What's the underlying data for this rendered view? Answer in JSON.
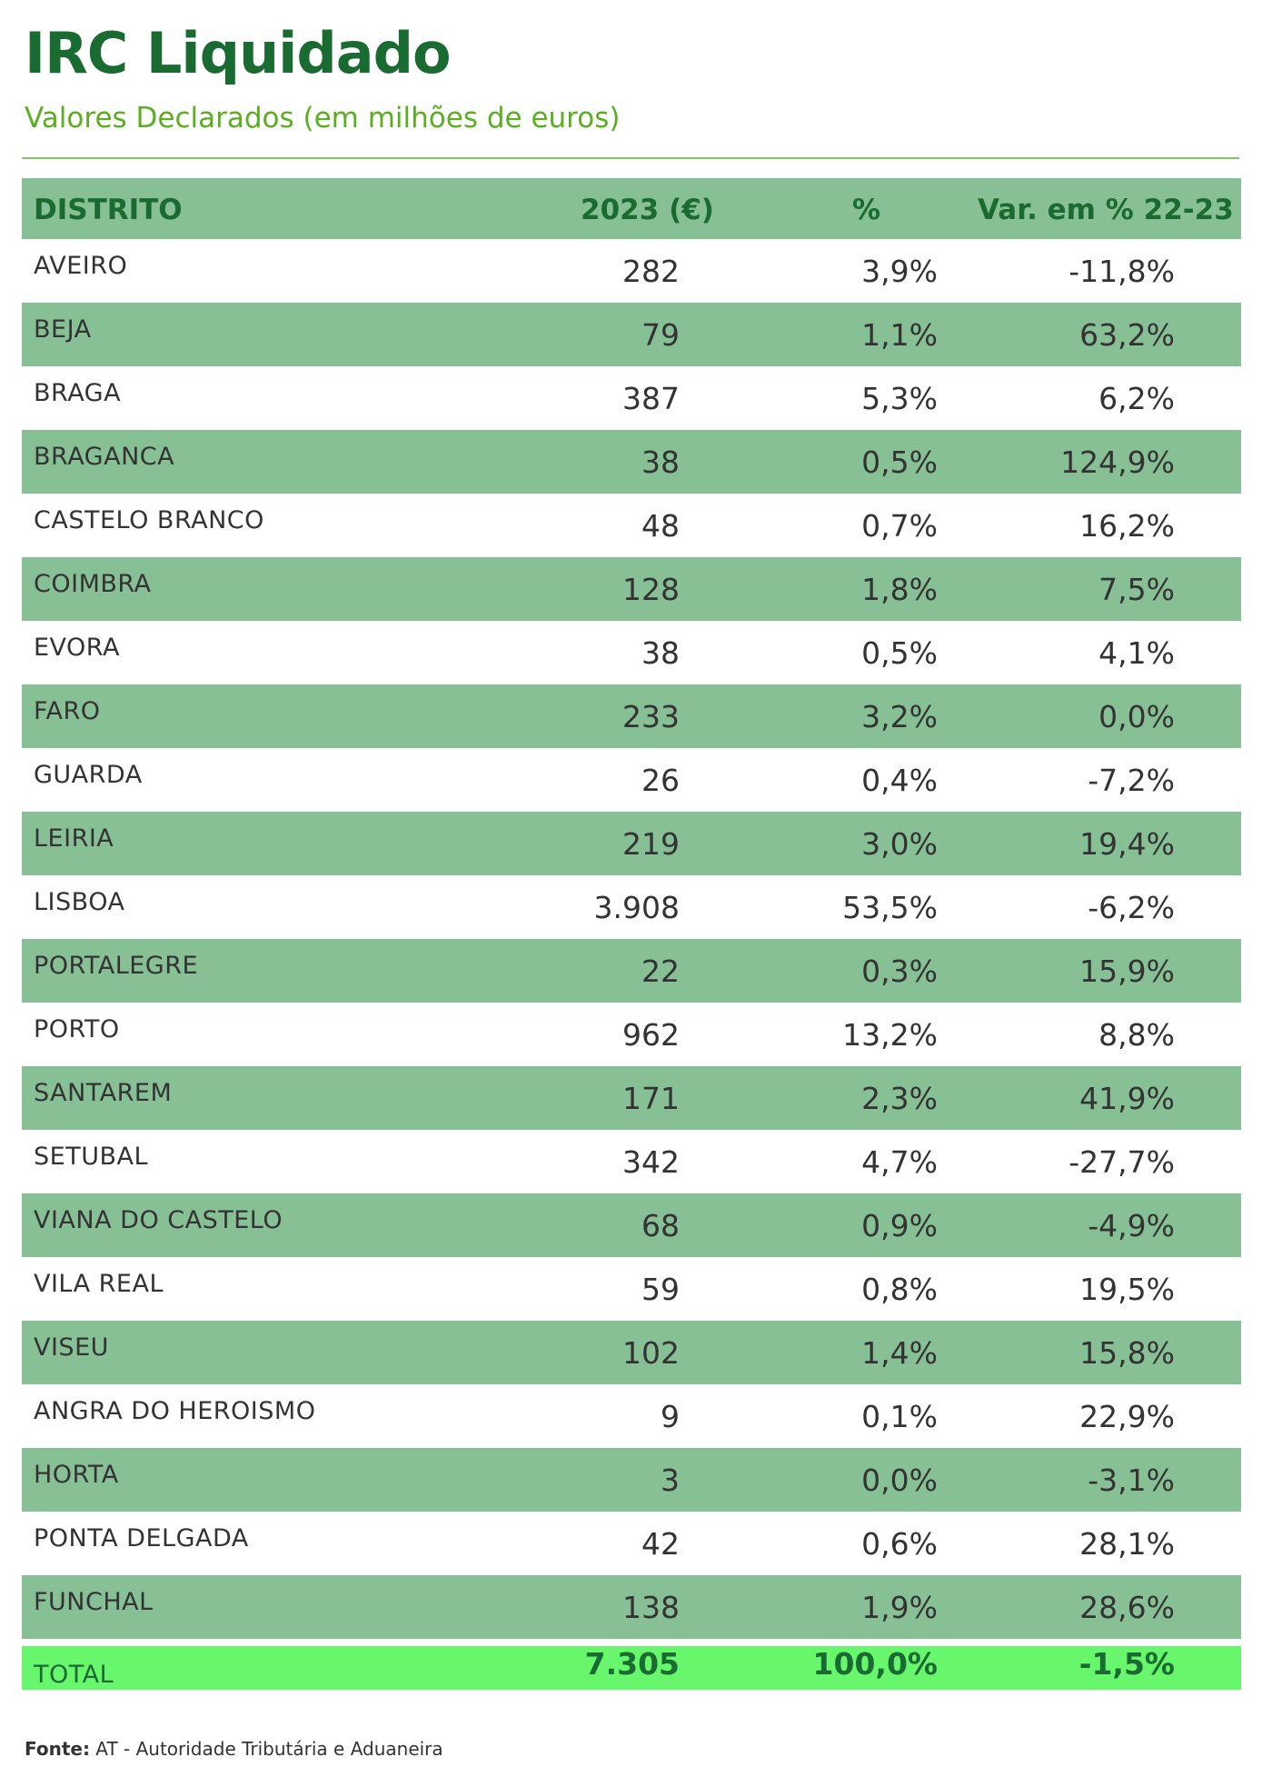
{
  "header": {
    "title": "IRC Liquidado",
    "subtitle": "Valores Declarados (em milhões de euros)"
  },
  "table": {
    "columns": [
      "DISTRITO",
      "2023 (€)",
      "%",
      "Var.  em % 22-23"
    ],
    "rows": [
      {
        "distrito": "AVEIRO",
        "valor": "282",
        "pct": "3,9%",
        "var": "-11,8%"
      },
      {
        "distrito": "BEJA",
        "valor": "79",
        "pct": "1,1%",
        "var": "63,2%"
      },
      {
        "distrito": "BRAGA",
        "valor": "387",
        "pct": "5,3%",
        "var": "6,2%"
      },
      {
        "distrito": "BRAGANCA",
        "valor": "38",
        "pct": "0,5%",
        "var": "124,9%"
      },
      {
        "distrito": "CASTELO BRANCO",
        "valor": "48",
        "pct": "0,7%",
        "var": "16,2%"
      },
      {
        "distrito": "COIMBRA",
        "valor": "128",
        "pct": "1,8%",
        "var": "7,5%"
      },
      {
        "distrito": "EVORA",
        "valor": "38",
        "pct": "0,5%",
        "var": "4,1%"
      },
      {
        "distrito": "FARO",
        "valor": "233",
        "pct": "3,2%",
        "var": "0,0%"
      },
      {
        "distrito": "GUARDA",
        "valor": "26",
        "pct": "0,4%",
        "var": "-7,2%"
      },
      {
        "distrito": "LEIRIA",
        "valor": "219",
        "pct": "3,0%",
        "var": "19,4%"
      },
      {
        "distrito": "LISBOA",
        "valor": "3.908",
        "pct": "53,5%",
        "var": "-6,2%"
      },
      {
        "distrito": "PORTALEGRE",
        "valor": "22",
        "pct": "0,3%",
        "var": "15,9%"
      },
      {
        "distrito": "PORTO",
        "valor": "962",
        "pct": "13,2%",
        "var": "8,8%"
      },
      {
        "distrito": "SANTAREM",
        "valor": "171",
        "pct": "2,3%",
        "var": "41,9%"
      },
      {
        "distrito": "SETUBAL",
        "valor": "342",
        "pct": "4,7%",
        "var": "-27,7%"
      },
      {
        "distrito": "VIANA DO CASTELO",
        "valor": "68",
        "pct": "0,9%",
        "var": "-4,9%"
      },
      {
        "distrito": "VILA REAL",
        "valor": "59",
        "pct": "0,8%",
        "var": "19,5%"
      },
      {
        "distrito": "VISEU",
        "valor": "102",
        "pct": "1,4%",
        "var": "15,8%"
      },
      {
        "distrito": "ANGRA DO HEROISMO",
        "valor": "9",
        "pct": "0,1%",
        "var": "22,9%"
      },
      {
        "distrito": "HORTA",
        "valor": "3",
        "pct": "0,0%",
        "var": "-3,1%"
      },
      {
        "distrito": "PONTA DELGADA",
        "valor": "42",
        "pct": "0,6%",
        "var": "28,1%"
      },
      {
        "distrito": "FUNCHAL",
        "valor": "138",
        "pct": "1,9%",
        "var": "28,6%"
      }
    ],
    "total": {
      "distrito": "TOTAL",
      "valor": "7.305",
      "pct": "100,0%",
      "var": "-1,5%"
    }
  },
  "footer": {
    "source_label": "Fonte:",
    "source_text": " AT - Autoridade Tributária e Aduaneira"
  },
  "colors": {
    "title": "#1a6b31",
    "subtitle": "#5cae21",
    "row_shade": "#87c094",
    "total_row": "#67f66c"
  }
}
